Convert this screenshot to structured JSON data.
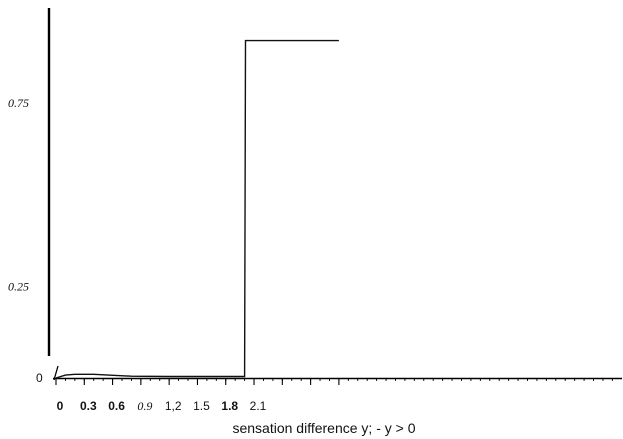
{
  "chart_data": {
    "type": "line",
    "title": "",
    "xlabel": "sensation difference y; - y > 0",
    "ylabel": "",
    "xlim": [
      0,
      3.0
    ],
    "ylim": [
      0,
      1
    ],
    "grid": false,
    "x_ticks": [
      {
        "value": 0,
        "label": "0",
        "style": "bold"
      },
      {
        "value": 0.3,
        "label": "0.3",
        "style": "bold"
      },
      {
        "value": 0.6,
        "label": "0.6",
        "style": "bold"
      },
      {
        "value": 0.9,
        "label": "0.9",
        "style": "italic"
      },
      {
        "value": 1.2,
        "label": "1,2",
        "style": "plain"
      },
      {
        "value": 1.5,
        "label": "1.5",
        "style": "plain"
      },
      {
        "value": 1.8,
        "label": "1.8",
        "style": "bold"
      },
      {
        "value": 2.1,
        "label": "2.1",
        "style": "plain"
      }
    ],
    "y_ticks": [
      {
        "value": 0,
        "label": "0"
      },
      {
        "value": 0.25,
        "label": "0.25"
      },
      {
        "value": 0.75,
        "label": "0.75"
      }
    ],
    "series": [
      {
        "x": [
          0,
          0.1,
          0.2,
          0.4,
          0.8,
          1.2,
          1.6,
          2.0,
          2.01,
          2.5,
          3.0
        ],
        "y": [
          0,
          0.008,
          0.01,
          0.01,
          0.005,
          0.004,
          0.004,
          0.004,
          0.92,
          0.92,
          0.92
        ],
        "color": "#111111"
      }
    ]
  }
}
